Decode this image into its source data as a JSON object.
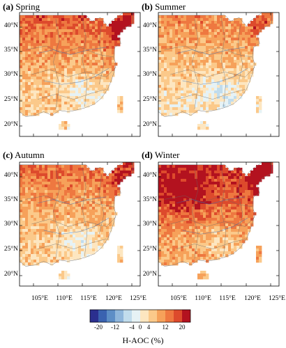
{
  "panels": [
    {
      "tag": "(a)",
      "season": "Spring",
      "intensity": 1.1,
      "north": 1.45
    },
    {
      "tag": "(b)",
      "season": "Summer",
      "intensity": 0.7,
      "north": 1.05
    },
    {
      "tag": "(c)",
      "season": "Autumn",
      "intensity": 1.05,
      "north": 1.2
    },
    {
      "tag": "(d)",
      "season": "Winter",
      "intensity": 1.75,
      "north": 1.6
    }
  ],
  "lat_labels": [
    "40°N",
    "35°N",
    "30°N",
    "25°N",
    "20°N"
  ],
  "lon_labels": [
    "105°E",
    "110°E",
    "115°E",
    "120°E",
    "125°E"
  ],
  "colorbar": {
    "title": "H-AOC (%)",
    "ticks": [
      "-20",
      "-12",
      "-4",
      "0",
      "4",
      "12",
      "20"
    ],
    "colors": [
      "#2b2f8f",
      "#3a62b0",
      "#5d8ec6",
      "#8fb6db",
      "#c1dcec",
      "#e6f2f5",
      "#fde6c0",
      "#fbc98a",
      "#f6a15a",
      "#ee7840",
      "#dd4a2c",
      "#b3121f"
    ]
  }
}
